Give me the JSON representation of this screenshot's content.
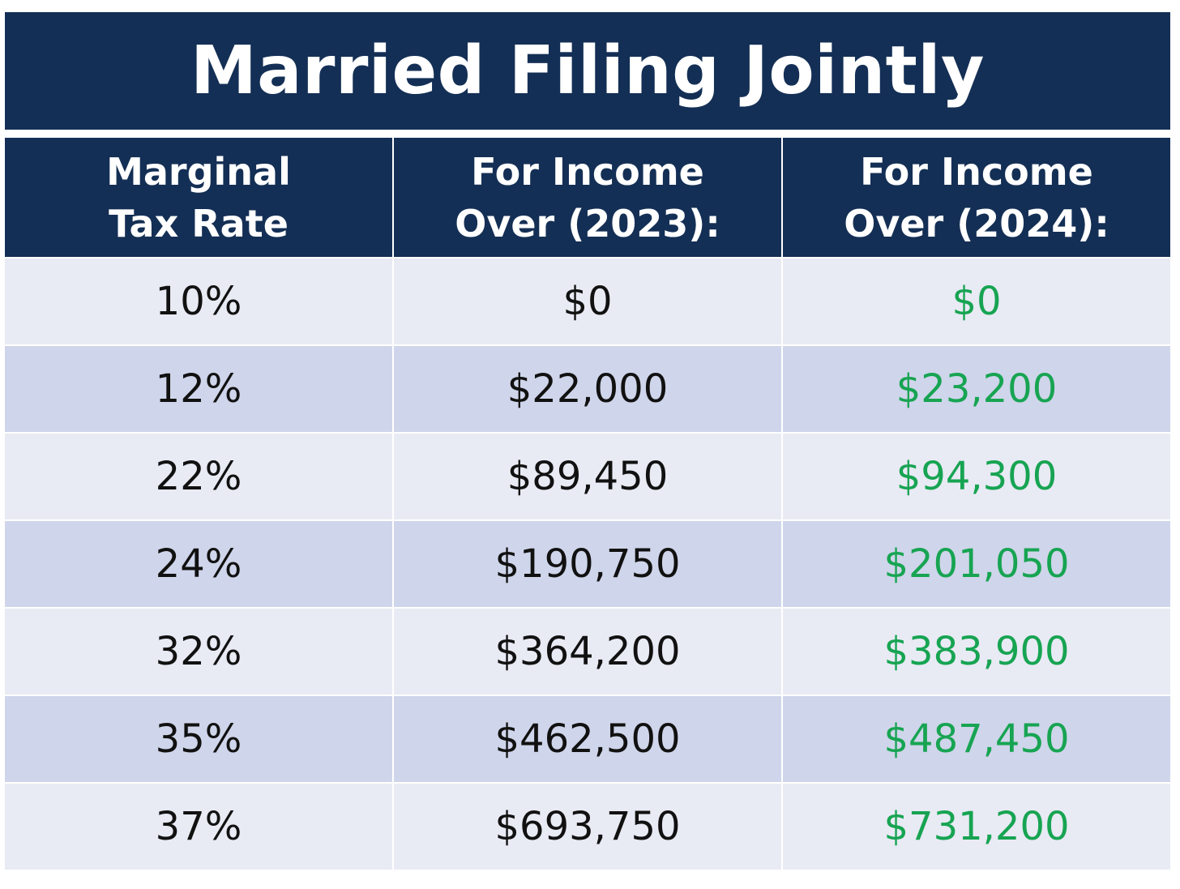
{
  "title": "Married Filing Jointly",
  "headers": [
    {
      "line1": "Marginal",
      "line2": "Tax Rate"
    },
    {
      "line1": "For Income",
      "line2": "Over (2023):"
    },
    {
      "line1": "For Income",
      "line2": "Over (2024):"
    }
  ],
  "rows": [
    {
      "rate": "10%",
      "y2023": "$0",
      "y2024": "$0"
    },
    {
      "rate": "12%",
      "y2023": "$22,000",
      "y2024": "$23,200"
    },
    {
      "rate": "22%",
      "y2023": "$89,450",
      "y2024": "$94,300"
    },
    {
      "rate": "24%",
      "y2023": "$190,750",
      "y2024": "$201,050"
    },
    {
      "rate": "32%",
      "y2023": "$364,200",
      "y2024": "$383,900"
    },
    {
      "rate": "35%",
      "y2023": "$462,500",
      "y2024": "$487,450"
    },
    {
      "rate": "37%",
      "y2023": "$693,750",
      "y2024": "$731,200"
    }
  ],
  "colors": {
    "header_bg": "#142f55",
    "row_light": "#e8eaf4",
    "row_dark": "#cfd5ea",
    "value_2024": "#17a452"
  }
}
